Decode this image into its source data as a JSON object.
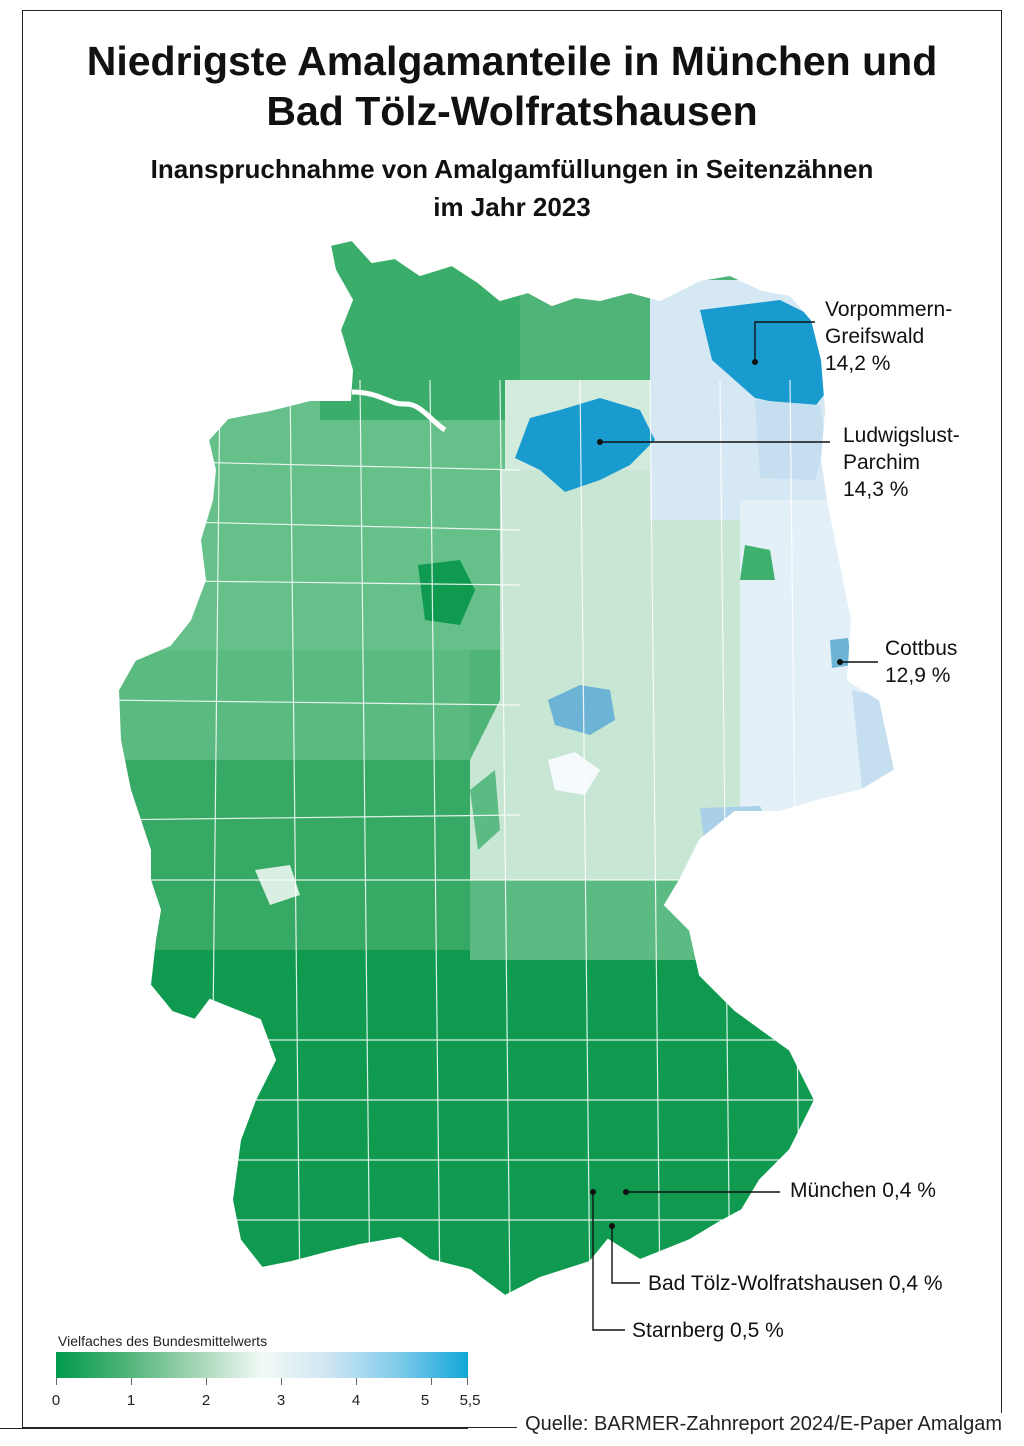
{
  "header": {
    "title_line1": "Niedrigste Amalgamanteile in München und",
    "title_line2": "Bad Tölz-Wolfratshausen",
    "subtitle_line1": "Inanspruchnahme von Amalgamfüllungen in Seitenzähnen",
    "subtitle_line2": "im Jahr 2023"
  },
  "callouts": [
    {
      "id": "vorpommern",
      "text": "Vorpommern-\nGreifswald\n14,2 %"
    },
    {
      "id": "ludwigslust",
      "text": "Ludwigslust-\nParchim\n14,3 %"
    },
    {
      "id": "cottbus",
      "text": "Cottbus\n12,9 %"
    },
    {
      "id": "muenchen",
      "text": "München 0,4 %"
    },
    {
      "id": "badtoelz",
      "text": "Bad Tölz-Wolfratshausen 0,4 %"
    },
    {
      "id": "starnberg",
      "text": "Starnberg 0,5 %"
    }
  ],
  "legend": {
    "title": "Vielfaches des Bundesmittelwerts",
    "ticks": [
      "0",
      "1",
      "2",
      "3",
      "4",
      "5",
      "5,5"
    ],
    "colors": {
      "low": "#009a4c",
      "mid": "#f2faf6",
      "high": "#11a6d8"
    }
  },
  "source": "Quelle: BARMER-Zahnreport 2024/E-Paper Amalgam",
  "colors": {
    "dark_green": "#0f9a50",
    "mid_green": "#3aad6b",
    "light_green": "#7cc59a",
    "pale_green": "#c6e6d2",
    "pale_blue": "#cfe3f0",
    "mid_blue": "#6cb3d6",
    "strong_blue": "#1a9bd0"
  }
}
